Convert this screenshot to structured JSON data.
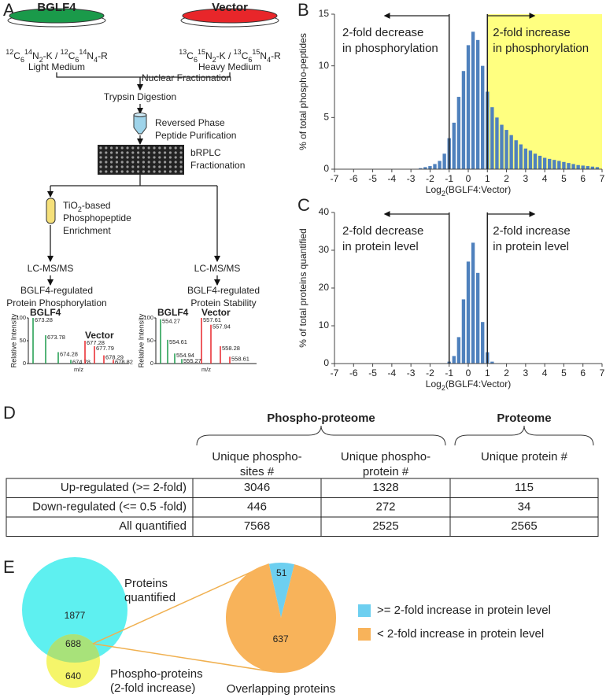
{
  "panel_labels": [
    "A",
    "B",
    "C",
    "D",
    "E"
  ],
  "panel_a": {
    "dishes": [
      {
        "name": "BGLF4",
        "color": "#1a9a4a",
        "isotopes": [
          "12",
          "C",
          "6",
          "14",
          "N",
          "2",
          "-K / ",
          "12",
          "C",
          "6",
          "14",
          "N",
          "4",
          "-R"
        ],
        "medium": "Light Medium"
      },
      {
        "name": "Vector",
        "color": "#e8262a",
        "isotopes": [
          "13",
          "C",
          "6",
          "15",
          "N",
          "2",
          "-K / ",
          "13",
          "C",
          "6",
          "15",
          "N",
          "4",
          "-R"
        ],
        "medium": "Heavy Medium"
      }
    ],
    "nuclear": "Nuclear Fractionation",
    "trypsin": "Trypsin Digestion",
    "rp": [
      "Reversed Phase",
      "Peptide Purification"
    ],
    "brplc": [
      "bRPLC",
      "Fractionation"
    ],
    "tio2": {
      "first": [
        "TiO",
        "2",
        "-based"
      ],
      "rest": [
        "Phosphopeptide",
        "Enrichment"
      ]
    },
    "branches": [
      {
        "method": "LC-MS/MS",
        "result": [
          "BGLF4-regulated",
          "Protein Phosphorylation"
        ],
        "spectrum": {
          "y_label": "Relative Intensity",
          "x_label": "m/z",
          "yticks": [
            0,
            50,
            100
          ],
          "labels": [
            "BGLF4",
            "Vector"
          ],
          "light": {
            "mz": [
              "673.28",
              "673.78",
              "674.28",
              "674.78"
            ],
            "heights": [
              100,
              62,
              25,
              8
            ]
          },
          "heavy": {
            "mz": [
              "677.28",
              "677.79",
              "678.29",
              "678.82"
            ],
            "heights": [
              50,
              38,
              18,
              8
            ]
          }
        }
      },
      {
        "method": "LC-MS/MS",
        "result": [
          "BGLF4-regulated",
          "Protein Stability"
        ],
        "spectrum": {
          "y_label": "Relative Intensity",
          "x_label": "m/z",
          "yticks": [
            0,
            50,
            100
          ],
          "labels": [
            "BGLF4",
            "Vector"
          ],
          "light": {
            "mz": [
              "554.27",
              "554.61",
              "554.94",
              "555.27"
            ],
            "heights": [
              97,
              52,
              22,
              10
            ]
          },
          "heavy": {
            "mz": [
              "557.61",
              "557.94",
              "558.28",
              "558.61"
            ],
            "heights": [
              100,
              85,
              38,
              15
            ]
          }
        }
      }
    ]
  },
  "chart_data": [
    {
      "type": "bar",
      "y_label": "% of total phospho-peptides",
      "x_label": [
        "Log",
        "2",
        "(BGLF4:Vector)"
      ],
      "x": [
        -2.5,
        -2.25,
        -2,
        -1.75,
        -1.5,
        -1.25,
        -1,
        -0.75,
        -0.5,
        -0.25,
        0,
        0.25,
        0.5,
        0.75,
        1,
        1.25,
        1.5,
        1.75,
        2,
        2.25,
        2.5,
        2.75,
        3,
        3.25,
        3.5,
        3.75,
        4,
        4.25,
        4.5,
        4.75,
        5,
        5.25,
        5.5,
        5.75,
        6,
        6.25,
        6.5,
        6.75
      ],
      "values": [
        0.1,
        0.2,
        0.3,
        0.5,
        0.8,
        1.5,
        3,
        4.5,
        7,
        9.5,
        12,
        13.3,
        12.5,
        10,
        7.5,
        6,
        5,
        4.3,
        3.8,
        3.3,
        2.8,
        2.4,
        2,
        1.8,
        1.5,
        1.3,
        1.1,
        1,
        0.9,
        0.8,
        0.7,
        0.6,
        0.5,
        0.4,
        0.35,
        0.3,
        0.25,
        0.2
      ],
      "color": "#4f81bd",
      "highlight_color": "#ffff80",
      "annotations": [
        [
          "2-fold decrease",
          "in phosphorylation"
        ],
        [
          "2-fold increase",
          "in phosphorylation"
        ]
      ],
      "xlim": [
        -7,
        7
      ],
      "xticks": [
        -7,
        -6,
        -5,
        -4,
        -3,
        -2,
        -1,
        0,
        1,
        2,
        3,
        4,
        5,
        6,
        7
      ],
      "ylim": [
        0,
        15
      ],
      "yticks": [
        0,
        5,
        10,
        15
      ]
    },
    {
      "type": "bar",
      "y_label": "% of total proteins quantified",
      "x_label": [
        "Log",
        "2",
        "(BGLF4:Vector)"
      ],
      "x": [
        -1,
        -0.75,
        -0.5,
        -0.25,
        0,
        0.25,
        0.5,
        0.75,
        1,
        1.25
      ],
      "values": [
        0.5,
        2,
        7,
        17,
        27,
        32,
        24,
        11,
        3,
        0.5
      ],
      "color": "#4f81bd",
      "annotations": [
        [
          "2-fold decrease",
          "in protein level"
        ],
        [
          "2-fold increase",
          "in protein level"
        ]
      ],
      "xlim": [
        -7,
        7
      ],
      "xticks": [
        -7,
        -6,
        -5,
        -4,
        -3,
        -2,
        -1,
        0,
        1,
        2,
        3,
        4,
        5,
        6,
        7
      ],
      "ylim": [
        0,
        40
      ],
      "yticks": [
        0,
        10,
        20,
        30,
        40
      ]
    },
    {
      "type": "pie",
      "title": "Overlapping proteins",
      "categories": [
        ">= 2-fold increase in protein level",
        "< 2-fold increase in protein level"
      ],
      "values": [
        51,
        637
      ],
      "colors": [
        "#6dcff0",
        "#f8b35a"
      ]
    }
  ],
  "table": {
    "groups": [
      "Phospho-proteome",
      "Proteome"
    ],
    "columns": [
      [
        "Unique phospho-",
        "sites #"
      ],
      [
        "Unique phospho-",
        "protein #"
      ],
      [
        "Unique protein #"
      ]
    ],
    "rows": [
      [
        "Up-regulated (>= 2-fold)",
        "3046",
        "1328",
        "115"
      ],
      [
        "Down-regulated (<= 0.5 -fold)",
        "446",
        "272",
        "34"
      ],
      [
        "All quantified",
        "7568",
        "2525",
        "2565"
      ]
    ]
  },
  "venn": {
    "sets": [
      {
        "name": [
          "Proteins",
          "quantified"
        ],
        "color": "#5ef0f0",
        "only": "1877"
      },
      {
        "name": [
          "Phospho-proteins",
          "(2-fold increase)"
        ],
        "color": "#f5f56a",
        "only": "640"
      }
    ],
    "overlap": "688",
    "overlap_color": "#a8e27a"
  }
}
